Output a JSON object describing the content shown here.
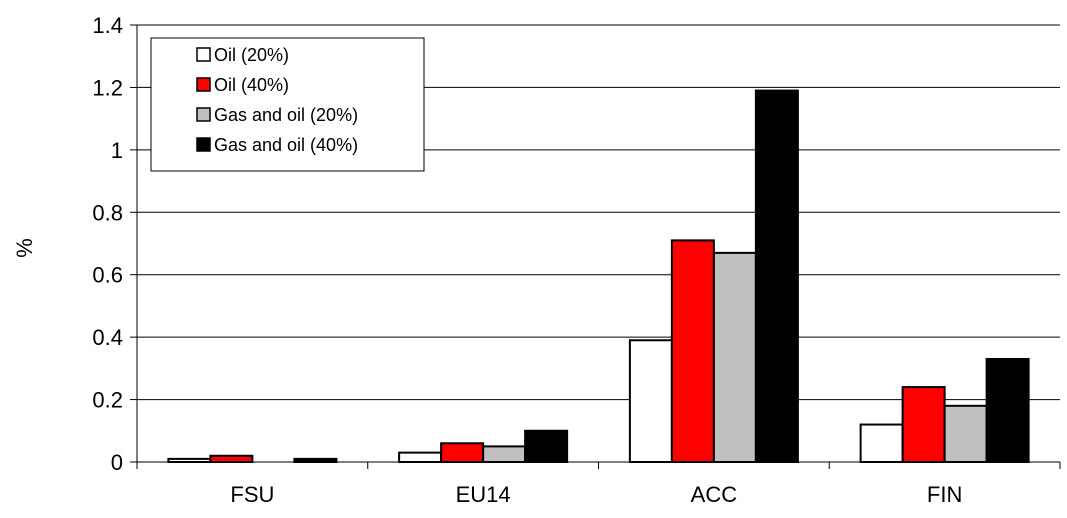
{
  "chart_data": {
    "type": "bar",
    "title": "",
    "xlabel": "",
    "ylabel": "%",
    "ylim": [
      0,
      1.4
    ],
    "yticks": [
      "0",
      "0.2",
      "0.4",
      "0.6",
      "0.8",
      "1",
      "1.2",
      "1.4"
    ],
    "grid": true,
    "legend_position": "top-left",
    "categories": [
      "FSU",
      "EU14",
      "ACC",
      "FIN"
    ],
    "series": [
      {
        "name": "Oil (20%)",
        "color": "#ffffff",
        "values": [
          0.01,
          0.03,
          0.39,
          0.12
        ]
      },
      {
        "name": "Oil (40%)",
        "color": "#ff0000",
        "values": [
          0.02,
          0.06,
          0.71,
          0.24
        ]
      },
      {
        "name": "Gas and oil (20%)",
        "color": "#c0c0c0",
        "values": [
          0.0,
          0.05,
          0.67,
          0.18
        ]
      },
      {
        "name": "Gas and oil (40%)",
        "color": "#000000",
        "values": [
          0.01,
          0.1,
          1.19,
          0.33
        ]
      }
    ]
  }
}
